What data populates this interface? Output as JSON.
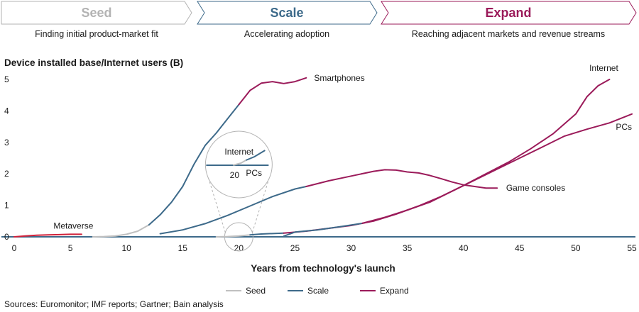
{
  "phases": [
    {
      "name": "Seed",
      "description": "Finding initial product-market fit",
      "color": "#b3b3b3"
    },
    {
      "name": "Scale",
      "description": "Accelerating adoption",
      "color": "#3d6a8a"
    },
    {
      "name": "Expand",
      "description": "Reaching adjacent markets and revenue streams",
      "color": "#9b1b5a"
    }
  ],
  "chart_data": {
    "type": "line",
    "title": "Device installed base/Internet users (B)",
    "xlabel": "Years from technology's launch",
    "ylabel": "Device installed base/Internet users (B)",
    "xlim": [
      0,
      55
    ],
    "ylim": [
      0,
      5
    ],
    "xticks": [
      0,
      5,
      10,
      15,
      20,
      25,
      30,
      35,
      40,
      45,
      50,
      55
    ],
    "yticks": [
      0,
      1,
      2,
      3,
      4,
      5
    ],
    "colors": {
      "Seed": "#c0c0c0",
      "Scale": "#3d6a8a",
      "Expand": "#9b1b5a",
      "Metaverse": "#d0213a",
      "baseline": "#3d6a8a"
    },
    "series": [
      {
        "name": "Metaverse",
        "phase": "Metaverse",
        "label": "Metaverse",
        "segments": [
          [
            [
              0,
              0
            ],
            [
              1,
              0.03
            ],
            [
              2,
              0.05
            ],
            [
              3,
              0.06
            ],
            [
              4,
              0.07
            ],
            [
              5,
              0.08
            ],
            [
              6,
              0.08
            ]
          ]
        ]
      },
      {
        "name": "Smartphones",
        "label": "Smartphones",
        "segments": [
          {
            "phase": "Seed",
            "points": [
              [
                7,
                0
              ],
              [
                8,
                0.01
              ],
              [
                9,
                0.03
              ],
              [
                10,
                0.08
              ],
              [
                11,
                0.18
              ],
              [
                12,
                0.38
              ]
            ]
          },
          {
            "phase": "Scale",
            "points": [
              [
                12,
                0.38
              ],
              [
                13,
                0.7
              ],
              [
                14,
                1.1
              ],
              [
                15,
                1.6
              ],
              [
                16,
                2.3
              ],
              [
                17,
                2.9
              ],
              [
                18,
                3.3
              ],
              [
                19,
                3.75
              ],
              [
                20,
                4.2
              ]
            ]
          },
          {
            "phase": "Expand",
            "points": [
              [
                20,
                4.2
              ],
              [
                21,
                4.65
              ],
              [
                22,
                4.88
              ],
              [
                23,
                4.93
              ],
              [
                24,
                4.87
              ],
              [
                25,
                4.93
              ],
              [
                26,
                5.05
              ]
            ]
          }
        ]
      },
      {
        "name": "Game consoles",
        "label": "Game consoles",
        "segments": [
          {
            "phase": "Scale",
            "points": [
              [
                13,
                0.1
              ],
              [
                15,
                0.22
              ],
              [
                17,
                0.42
              ],
              [
                19,
                0.68
              ],
              [
                21,
                0.98
              ],
              [
                23,
                1.28
              ],
              [
                25,
                1.52
              ],
              [
                26,
                1.6
              ]
            ]
          },
          {
            "phase": "Expand",
            "points": [
              [
                26,
                1.6
              ],
              [
                28,
                1.78
              ],
              [
                30,
                1.93
              ],
              [
                32,
                2.08
              ],
              [
                33,
                2.13
              ],
              [
                34,
                2.12
              ],
              [
                35,
                2.06
              ],
              [
                36,
                2.03
              ],
              [
                37,
                1.95
              ],
              [
                38,
                1.85
              ],
              [
                39,
                1.74
              ],
              [
                40,
                1.65
              ],
              [
                41,
                1.6
              ],
              [
                42,
                1.55
              ],
              [
                43,
                1.55
              ]
            ]
          }
        ]
      },
      {
        "name": "Internet",
        "label": "Internet",
        "segments": [
          {
            "phase": "Seed",
            "points": [
              [
                18,
                0
              ],
              [
                19,
                0.01
              ],
              [
                20,
                0.03
              ],
              [
                21,
                0.06
              ]
            ]
          },
          {
            "phase": "Scale",
            "points": [
              [
                21,
                0.06
              ],
              [
                22,
                0.09
              ],
              [
                24,
                0.12
              ]
            ]
          },
          {
            "phase": "Expand",
            "points": [
              [
                24,
                0.12
              ],
              [
                26,
                0.18
              ],
              [
                28,
                0.27
              ],
              [
                30,
                0.36
              ],
              [
                32,
                0.5
              ],
              [
                34,
                0.72
              ],
              [
                36,
                0.98
              ],
              [
                38,
                1.28
              ],
              [
                40,
                1.63
              ],
              [
                42,
                2.0
              ],
              [
                44,
                2.37
              ],
              [
                46,
                2.8
              ],
              [
                48,
                3.28
              ],
              [
                50,
                3.9
              ],
              [
                51,
                4.45
              ],
              [
                52,
                4.8
              ],
              [
                53,
                5.0
              ]
            ]
          }
        ]
      },
      {
        "name": "PCs",
        "label": "PCs",
        "segments": [
          {
            "phase": "Scale",
            "points": [
              [
                24,
                0.02
              ],
              [
                25,
                0.15
              ],
              [
                27,
                0.22
              ],
              [
                29,
                0.32
              ],
              [
                31,
                0.43
              ]
            ]
          },
          {
            "phase": "Expand",
            "points": [
              [
                31,
                0.43
              ],
              [
                33,
                0.62
              ],
              [
                35,
                0.85
              ],
              [
                37,
                1.1
              ],
              [
                39,
                1.45
              ],
              [
                41,
                1.8
              ],
              [
                43,
                2.15
              ],
              [
                45,
                2.5
              ],
              [
                47,
                2.85
              ],
              [
                49,
                3.2
              ],
              [
                51,
                3.42
              ],
              [
                53,
                3.62
              ],
              [
                55,
                3.9
              ]
            ]
          }
        ]
      }
    ],
    "zoom_inset": {
      "center_x": 20,
      "center_y": 0,
      "labels": {
        "internet": "Internet",
        "pcs": "PCs",
        "tick": "20"
      }
    },
    "legend": [
      {
        "label": "Seed",
        "phase": "Seed"
      },
      {
        "label": "Scale",
        "phase": "Scale"
      },
      {
        "label": "Expand",
        "phase": "Expand"
      }
    ]
  },
  "source": "Sources: Euromonitor; IMF reports; Gartner; Bain analysis"
}
